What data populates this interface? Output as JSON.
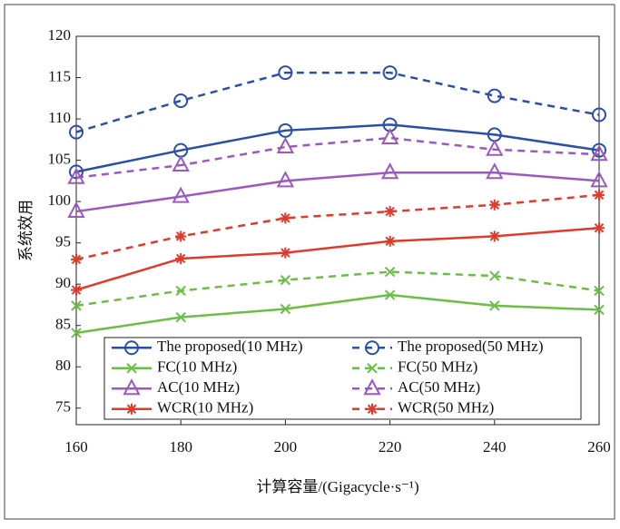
{
  "chart_data": {
    "type": "line",
    "x_label": "计算容量/(Gigacycle·s⁻¹)",
    "y_label": "系统效用",
    "x": [
      160,
      180,
      200,
      220,
      240,
      260
    ],
    "xlim": [
      160,
      260
    ],
    "xticks": [
      160,
      180,
      200,
      220,
      240,
      260
    ],
    "ylim": [
      73,
      120
    ],
    "yticks": [
      75,
      80,
      85,
      90,
      95,
      100,
      105,
      110,
      115,
      120
    ],
    "legend_columns": 2,
    "series": [
      {
        "name": "The proposed(10 MHz)",
        "color": "#2a4fa8",
        "dash": false,
        "marker": "circle",
        "values": [
          103.6,
          106.2,
          108.6,
          109.3,
          108.1,
          106.2
        ]
      },
      {
        "name": "The proposed(50 MHz)",
        "color": "#2a4fa8",
        "dash": true,
        "marker": "circle",
        "values": [
          108.4,
          112.2,
          115.6,
          115.6,
          112.8,
          110.5
        ]
      },
      {
        "name": "FC(10 MHz)",
        "color": "#6abf45",
        "dash": false,
        "marker": "x",
        "values": [
          84.1,
          86.0,
          87.0,
          88.7,
          87.4,
          86.9
        ]
      },
      {
        "name": "FC(50 MHz)",
        "color": "#6abf45",
        "dash": true,
        "marker": "x",
        "values": [
          87.4,
          89.2,
          90.5,
          91.5,
          91.0,
          89.2
        ]
      },
      {
        "name": "AC(10 MHz)",
        "color": "#9b59c0",
        "dash": false,
        "marker": "triangle",
        "values": [
          98.8,
          100.6,
          102.5,
          103.5,
          103.5,
          102.5
        ]
      },
      {
        "name": "AC(50 MHz)",
        "color": "#9b59c0",
        "dash": true,
        "marker": "triangle",
        "values": [
          102.9,
          104.4,
          106.6,
          107.7,
          106.3,
          105.7
        ]
      },
      {
        "name": "WCR(10 MHz)",
        "color": "#e03a2a",
        "dash": false,
        "marker": "asterisk",
        "values": [
          89.3,
          93.1,
          93.8,
          95.2,
          95.8,
          96.8
        ]
      },
      {
        "name": "WCR(50 MHz)",
        "color": "#e03a2a",
        "dash": true,
        "marker": "asterisk",
        "values": [
          93.0,
          95.8,
          98.0,
          98.8,
          99.6,
          100.8
        ]
      }
    ]
  }
}
